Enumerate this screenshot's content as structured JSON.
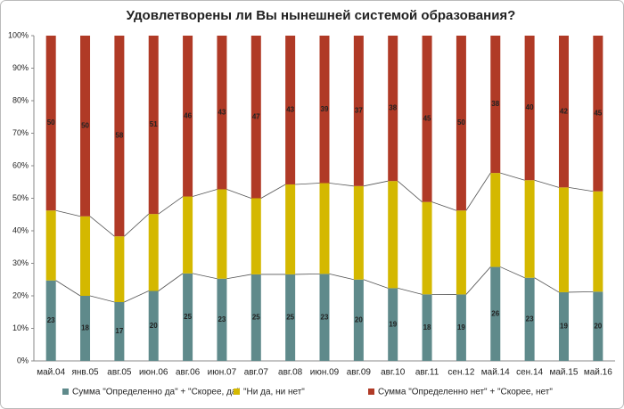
{
  "chart_data": {
    "type": "bar",
    "stacked": "percent",
    "title": "Удовлетворены ли Вы нынешней системой образования?",
    "categories": [
      "май.04",
      "янв.05",
      "авг.05",
      "июн.06",
      "авг.06",
      "июн.07",
      "авг.07",
      "авг.08",
      "июн.09",
      "авг.09",
      "авг.10",
      "авг.11",
      "сен.12",
      "май.14",
      "сен.14",
      "май.15",
      "май.16"
    ],
    "series": [
      {
        "name": "Сумма \"Определенно да\" + \"Скорее, да\"",
        "color": "#5f8a8b",
        "show_labels": true,
        "values": [
          23,
          18,
          17,
          20,
          25,
          23,
          25,
          25,
          23,
          20,
          19,
          18,
          19,
          26,
          23,
          19,
          20
        ]
      },
      {
        "name": "\"Ни да, ни нет\"",
        "color": "#d4b800",
        "show_labels": false,
        "values": [
          20,
          22,
          19,
          22,
          22,
          25,
          22,
          26,
          24,
          23,
          28,
          25,
          24,
          26,
          27,
          29,
          29
        ]
      },
      {
        "name": "Сумма \"Определенно нет\" + \"Скорее, нет\"",
        "color": "#b03a26",
        "show_labels": true,
        "values": [
          50,
          50,
          58,
          51,
          46,
          43,
          47,
          43,
          39,
          37,
          38,
          45,
          50,
          38,
          40,
          42,
          45
        ]
      }
    ],
    "ylim": [
      0,
      100
    ],
    "yticks": [
      {
        "value": 0,
        "label": "0%"
      },
      {
        "value": 10,
        "label": "10%"
      },
      {
        "value": 20,
        "label": "20%"
      },
      {
        "value": 30,
        "label": "30%"
      },
      {
        "value": 40,
        "label": "40%"
      },
      {
        "value": 50,
        "label": "50%"
      },
      {
        "value": 60,
        "label": "60%"
      },
      {
        "value": 70,
        "label": "70%"
      },
      {
        "value": 80,
        "label": "80%"
      },
      {
        "value": 90,
        "label": "90%"
      },
      {
        "value": 100,
        "label": "100%"
      }
    ],
    "grid": false,
    "legend": "bottom"
  }
}
